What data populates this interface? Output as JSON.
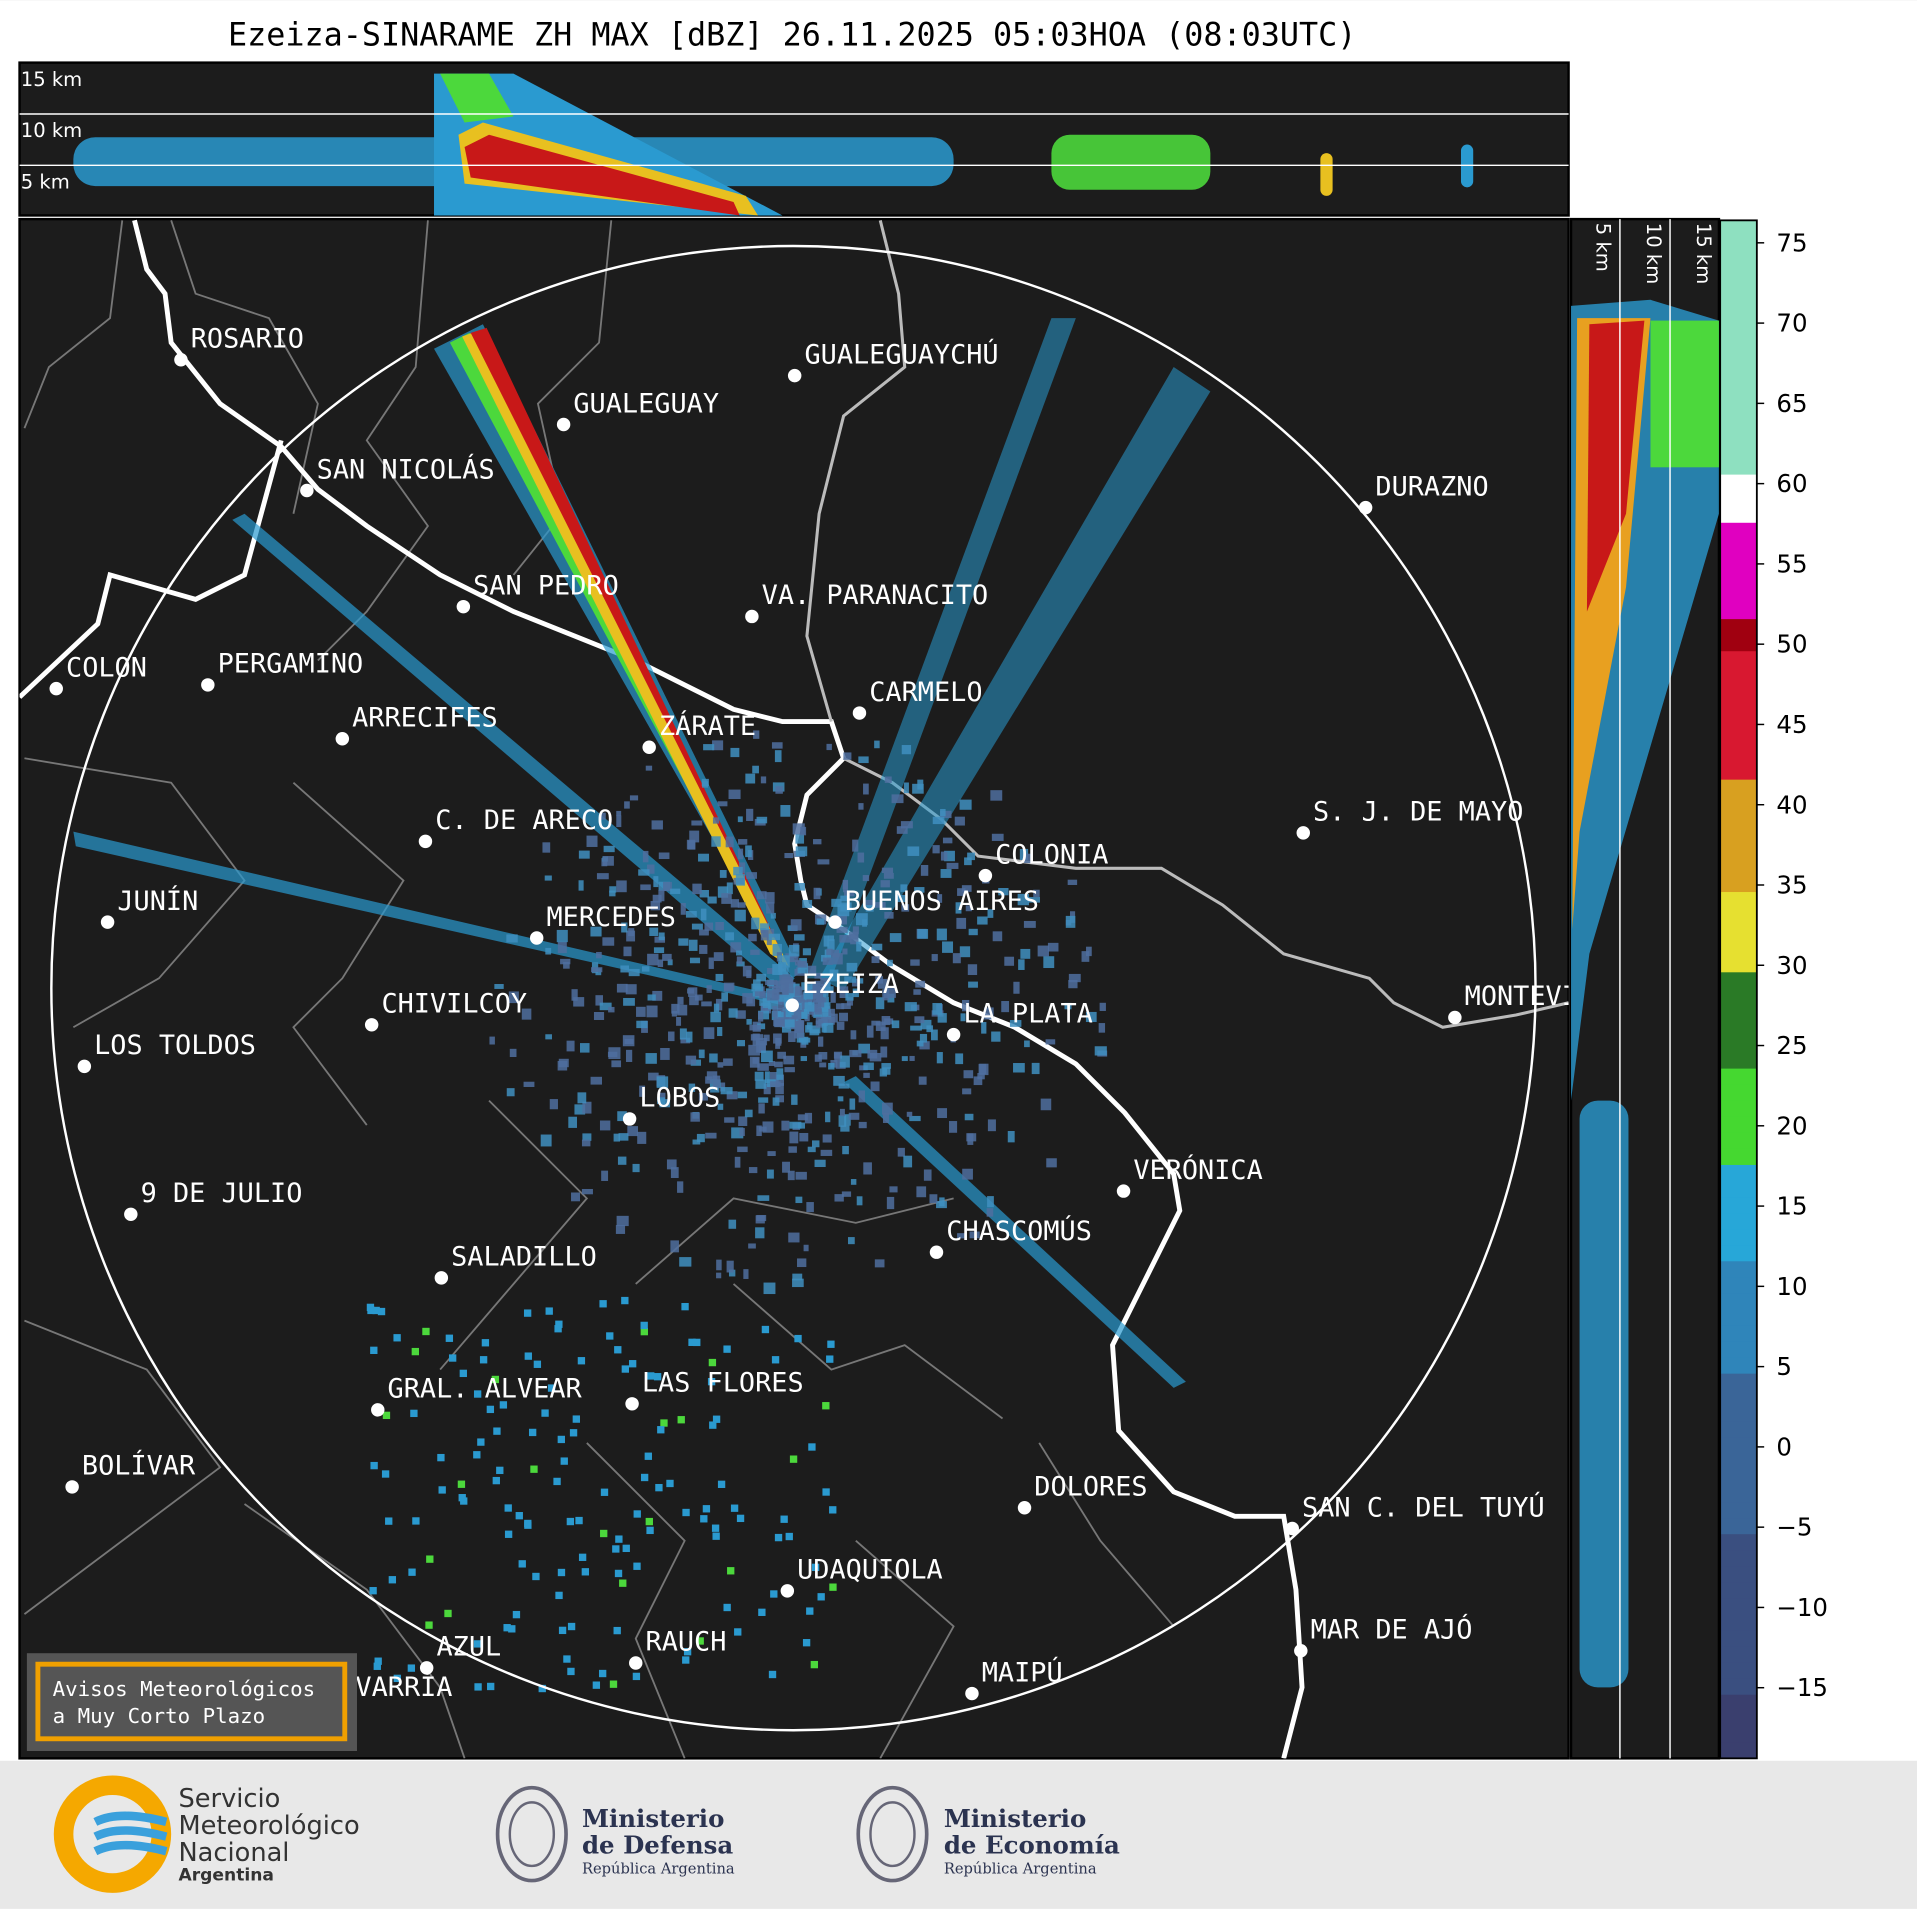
{
  "title": "Ezeiza-SINARAME ZH MAX [dBZ] 26.11.2025 05:03HOA (08:03UTC)",
  "top_panel": {
    "height_labels": [
      "15 km",
      "10 km",
      "5 km"
    ]
  },
  "side_panel": {
    "height_labels": [
      "5 km",
      "10 km",
      "15 km"
    ]
  },
  "colorbar": {
    "ylim": [
      -19.4,
      76.4
    ],
    "yticks": [
      75,
      70,
      65,
      60,
      55,
      50,
      45,
      40,
      35,
      30,
      25,
      20,
      15,
      10,
      5,
      0,
      {
        "value": -5,
        "label": "−5"
      },
      {
        "value": -10,
        "label": "−10"
      },
      {
        "value": -15,
        "label": "−15"
      }
    ]
  },
  "cities": [
    "ROSARIO",
    "GUALEGUAYCHÚ",
    "GUALEGUAY",
    "SAN NICOLÁS",
    "DURAZNO",
    "SAN PEDRO",
    "VA. PARANACITO",
    "COLON",
    "PERGAMINO",
    "CARMELO",
    "ARRECIFES",
    "ZÁRATE",
    "S. J. DE MAYO",
    "C. DE ARECO",
    "COLONIA",
    "JUNÍN",
    "BUENOS AIRES",
    "MERCEDES",
    "MONTEVIDEO",
    "CHIVILCOY",
    "EZEIZA",
    "LA PLATA",
    "LOS TOLDOS",
    "LOBOS",
    "VERÓNICA",
    "9 DE JULIO",
    "CHASCOMÚS",
    "SALADILLO",
    "GRAL. ALVEAR",
    "LAS FLORES",
    "BOLÍVAR",
    "DOLORES",
    "SAN C. DEL TUYÚ",
    "UDAQUIOLA",
    "MAR DE AJÓ",
    "AZUL",
    "RAUCH",
    "MAIPÚ",
    "OLAVARRÍA"
  ],
  "legend_box": [
    "Avisos Meteorológicos",
    "a Muy Corto Plazo"
  ],
  "footer": {
    "smn": [
      "Servicio",
      "Meteorológico",
      "Nacional",
      "Argentina"
    ],
    "defensa": [
      "Ministerio",
      "de Defensa",
      "República Argentina"
    ],
    "economia": [
      "Ministerio",
      "de Economía",
      "República Argentina"
    ]
  }
}
